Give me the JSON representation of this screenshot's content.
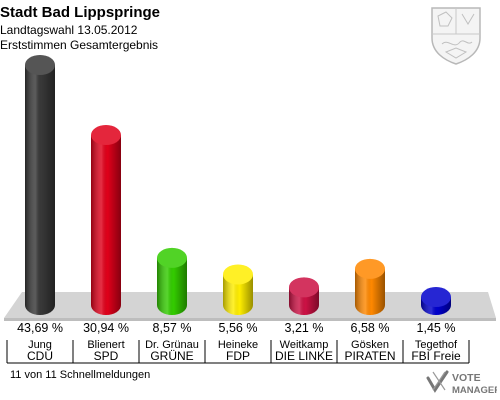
{
  "header": {
    "title": "Stadt Bad Lippspringe",
    "subtitle": "Landtagswahl 13.05.2012",
    "subtitle2": "Erststimmen Gesamtergebnis"
  },
  "footer": {
    "note": "11 von 11 Schnellmeldungen",
    "logo_line1": "VOTE",
    "logo_line2": "MANAGER"
  },
  "chart_data": {
    "type": "bar",
    "title": "Stadt Bad Lippspringe",
    "categories": [
      "Jung",
      "Blienert",
      "Dr. Grünau",
      "Heineke",
      "Weitkamp",
      "Gösken",
      "Tegethof"
    ],
    "parties": [
      "CDU",
      "SPD",
      "GRÜNE",
      "FDP",
      "DIE LINKE",
      "PIRATEN",
      "FBI Freie"
    ],
    "values": [
      43.69,
      30.94,
      8.57,
      5.56,
      3.21,
      6.58,
      1.45
    ],
    "value_labels": [
      "43,69 %",
      "30,94 %",
      "8,57 %",
      "5,56 %",
      "3,21 %",
      "6,58 %",
      "1,45 %"
    ],
    "colors": [
      "#383838",
      "#e0001a",
      "#33cc00",
      "#ffee00",
      "#cc1144",
      "#ff8800",
      "#0000cc"
    ],
    "ylim": [
      0,
      43.69
    ],
    "grid": false,
    "legend": "none"
  }
}
